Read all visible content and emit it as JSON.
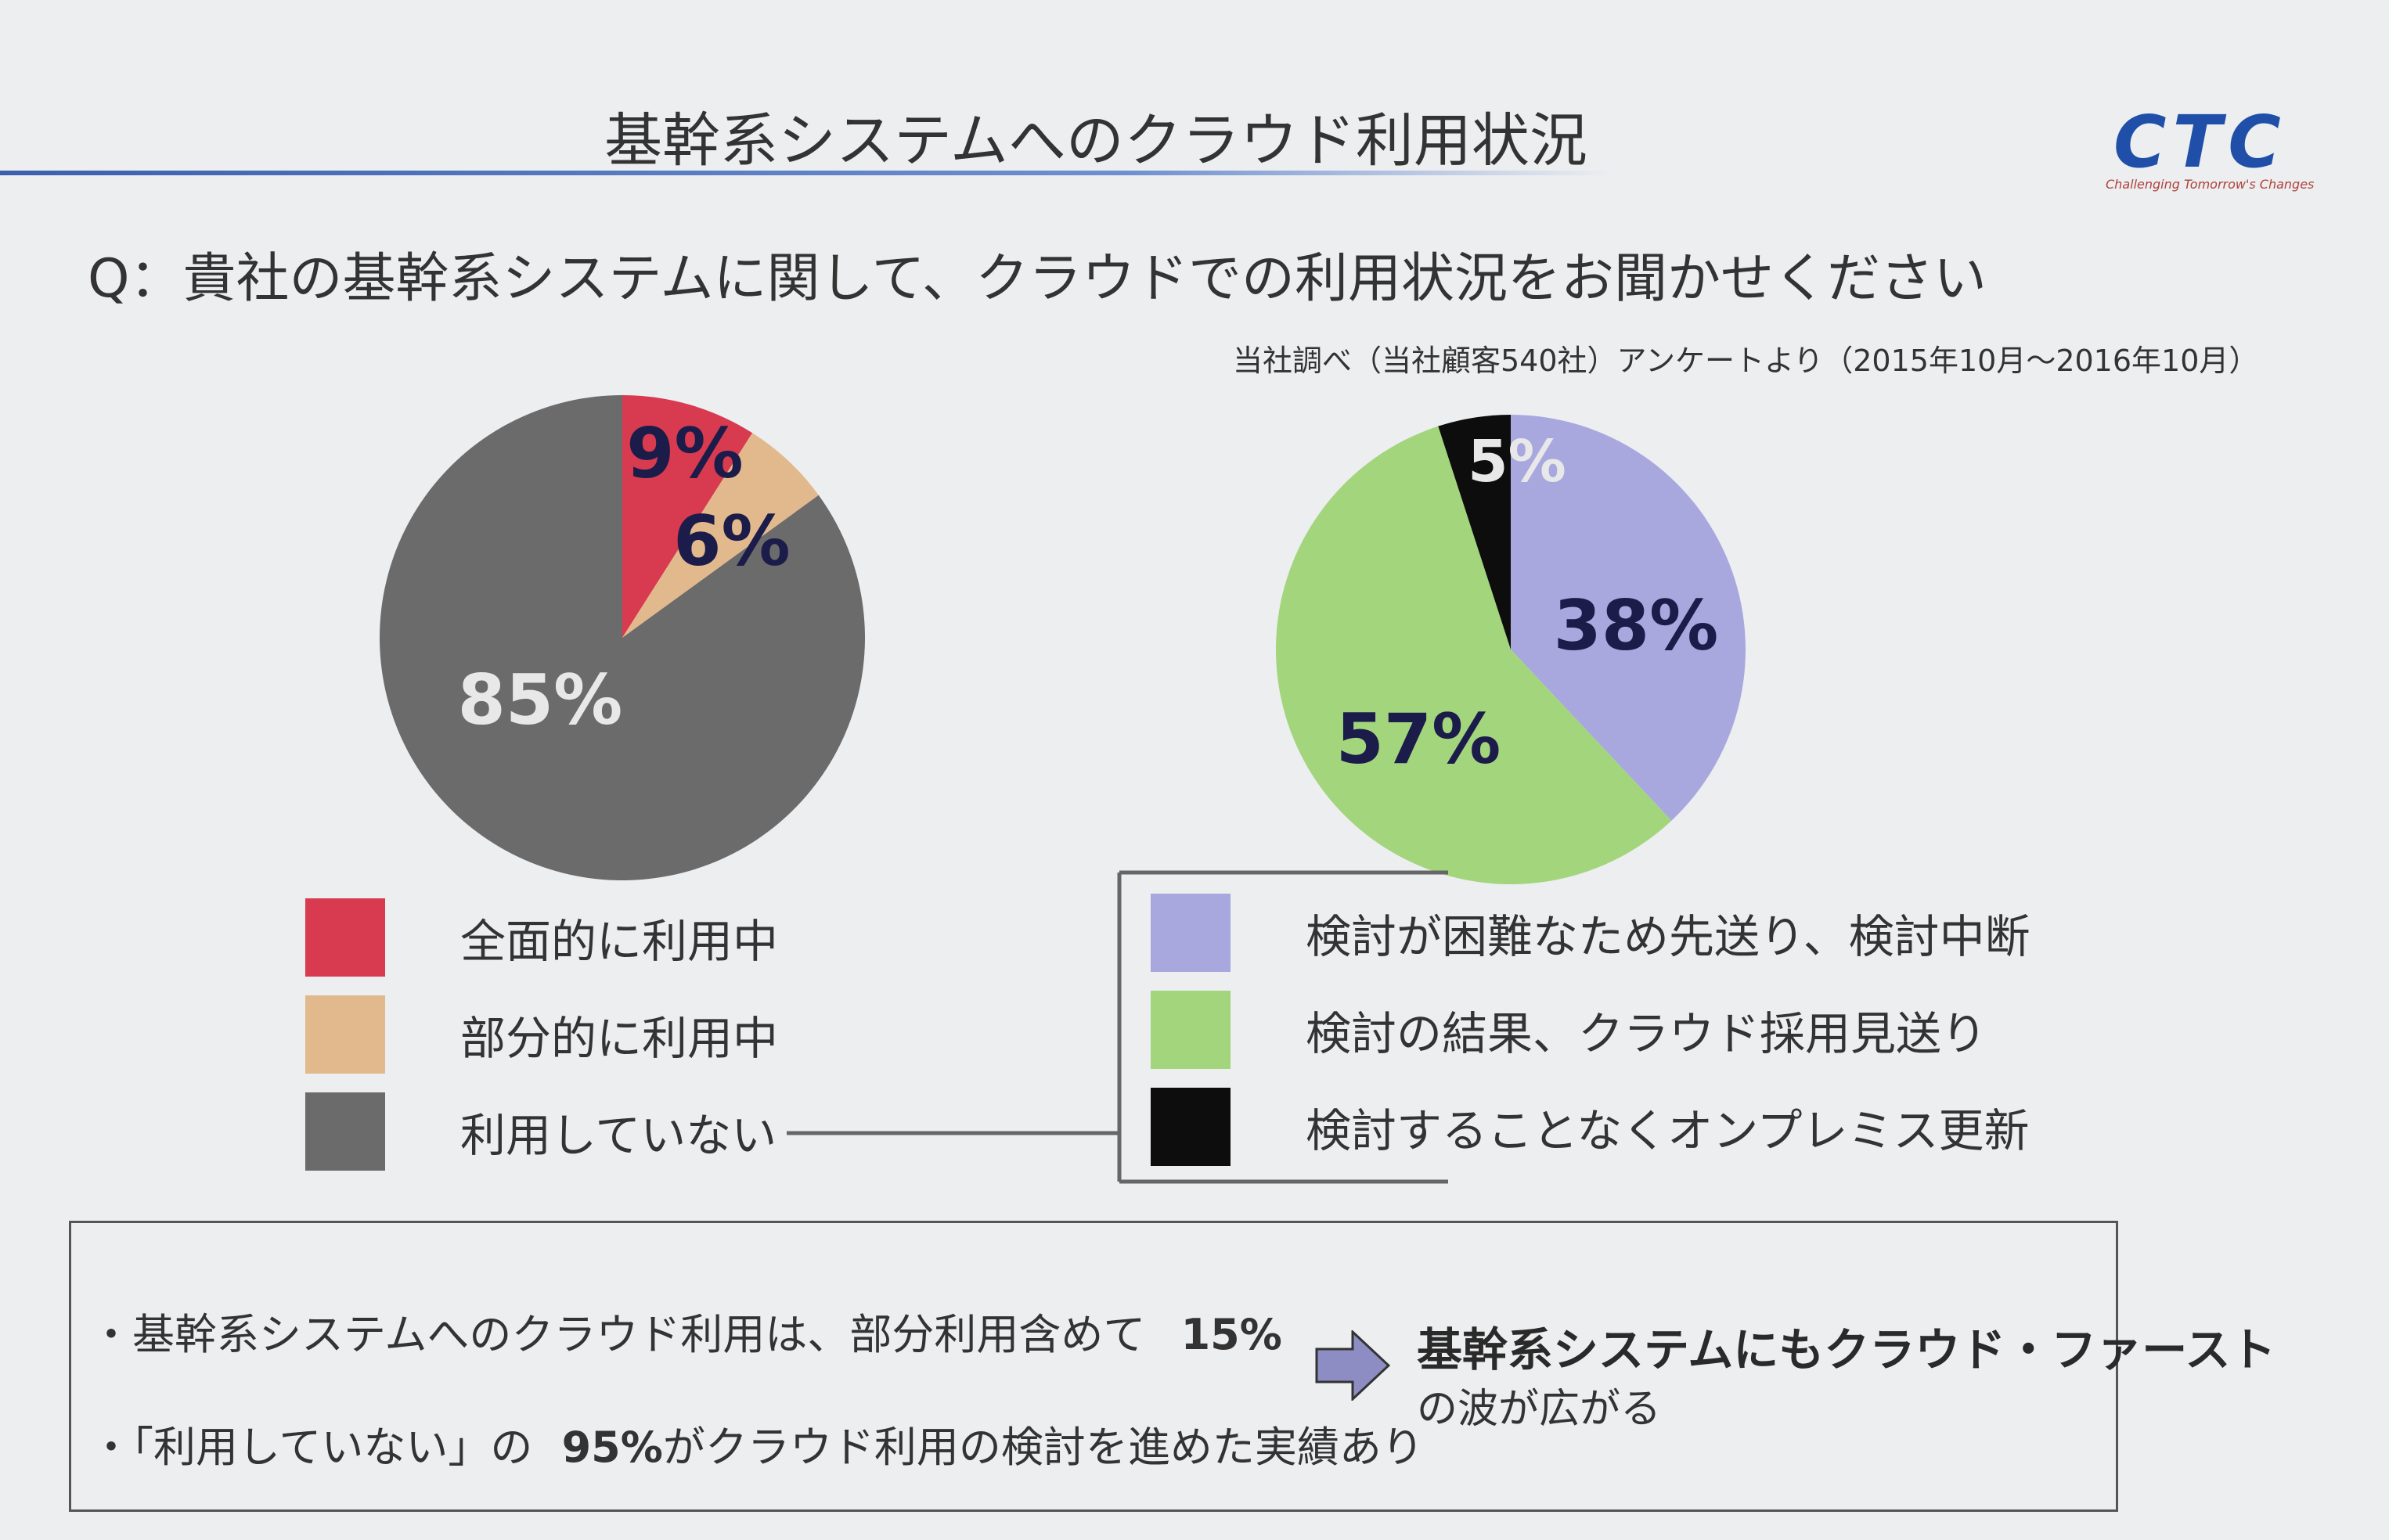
{
  "header": {
    "title": "基幹系システムへのクラウド利用状況",
    "logo": "CTC",
    "logo_tagline": "Challenging Tomorrow's Changes"
  },
  "question": "Q：貴社の基幹系システムに関して、クラウドでの利用状況をお聞かせください",
  "source": "当社調べ（当社顧客540社）アンケートより（2015年10月～2016年10月）",
  "colors": {
    "red": "#d83a4f",
    "tan": "#e2b98c",
    "gray": "#6b6b6b",
    "lavender": "#a8a8df",
    "green": "#a3d57d",
    "black": "#0d0d0d"
  },
  "chart_data": [
    {
      "type": "pie",
      "slices": [
        {
          "label": "全面的に利用中",
          "value": 9,
          "display": "9%",
          "color": "#d83a4f"
        },
        {
          "label": "部分的に利用中",
          "value": 6,
          "display": "6%",
          "color": "#e2b98c"
        },
        {
          "label": "利用していない",
          "value": 85,
          "display": "85%",
          "color": "#6b6b6b"
        }
      ]
    },
    {
      "type": "pie",
      "slices": [
        {
          "label": "検討が困難なため先送り、検討中断",
          "value": 38,
          "display": "38%",
          "color": "#a8a8df"
        },
        {
          "label": "検討の結果、クラウド採用見送り",
          "value": 57,
          "display": "57%",
          "color": "#a3d57d"
        },
        {
          "label": "検討することなくオンプレミス更新",
          "value": 5,
          "display": "5%",
          "color": "#0d0d0d"
        }
      ]
    }
  ],
  "legend_left": [
    {
      "label": "全面的に利用中",
      "color": "#d83a4f"
    },
    {
      "label": "部分的に利用中",
      "color": "#e2b98c"
    },
    {
      "label": "利用していない",
      "color": "#6b6b6b"
    }
  ],
  "legend_right": [
    {
      "label": "検討が困難なため先送り、検討中断",
      "color": "#a8a8df"
    },
    {
      "label": "検討の結果、クラウド採用見送り",
      "color": "#a3d57d"
    },
    {
      "label": "検討することなくオンプレミス更新",
      "color": "#0d0d0d"
    }
  ],
  "conclusion": {
    "bullet1_text": "・基幹系システムへのクラウド利用は、部分利用含めて",
    "bullet1_value": "15%",
    "bullet2_text_a": "・「利用していない」の",
    "bullet2_value": "95%",
    "bullet2_text_b": "がクラウド利用の検討を進めた実績あり",
    "main": "基幹系システムにもクラウド・ファースト",
    "sub": "の波が広がる"
  }
}
